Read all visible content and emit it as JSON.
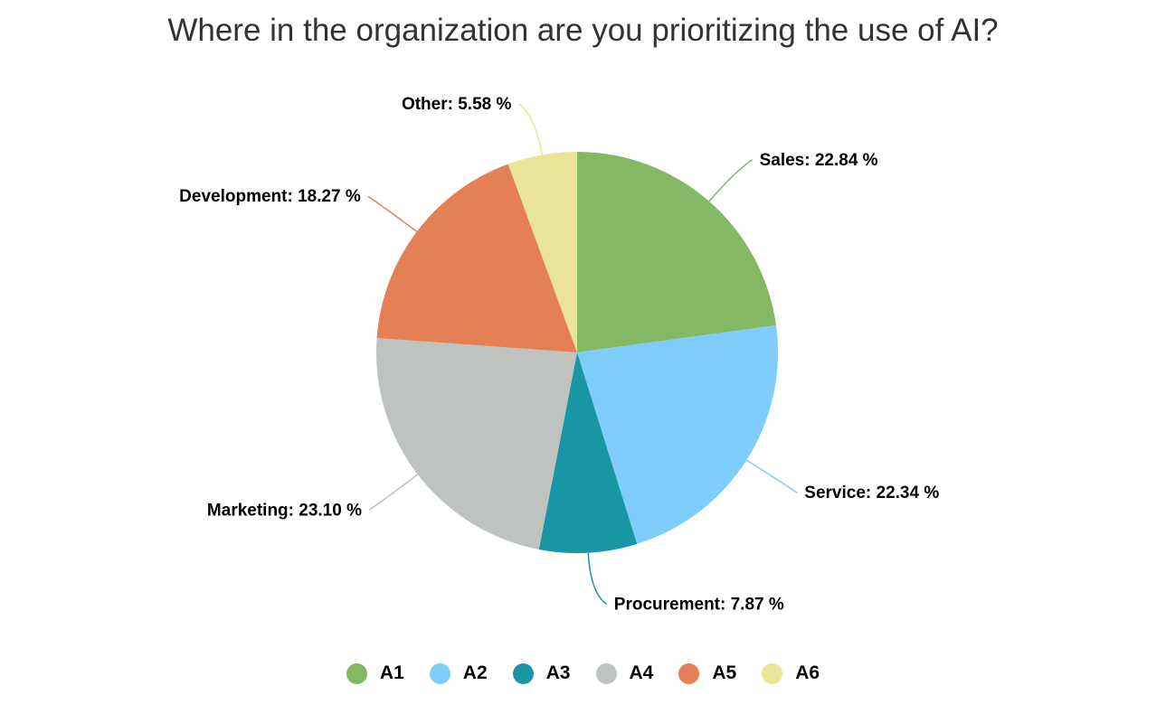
{
  "chart_data": {
    "type": "pie",
    "title": "Where in the organization are you prioritizing the use of AI?",
    "categories": [
      "Sales",
      "Service",
      "Procurement",
      "Marketing",
      "Development",
      "Other"
    ],
    "values": [
      22.84,
      22.34,
      7.87,
      23.1,
      18.27,
      5.58
    ],
    "unit": "%",
    "colors": [
      "#83b965",
      "#7fcdfc",
      "#1896a3",
      "#bec3bf",
      "#e58056",
      "#e9e497"
    ],
    "legend": {
      "position": "bottom",
      "entries": [
        "A1",
        "A2",
        "A3",
        "A4",
        "A5",
        "A6"
      ]
    },
    "labels": [
      "Sales: 22.84 %",
      "Service: 22.34 %",
      "Procurement: 7.87 %",
      "Marketing: 23.10 %",
      "Development: 18.27 %",
      "Other: 5.58 %"
    ]
  },
  "legend_items": [
    {
      "label": "A1",
      "color": "#83b965"
    },
    {
      "label": "A2",
      "color": "#7fcdfc"
    },
    {
      "label": "A3",
      "color": "#1896a3"
    },
    {
      "label": "A4",
      "color": "#bec3bf"
    },
    {
      "label": "A5",
      "color": "#e58056"
    },
    {
      "label": "A6",
      "color": "#e9e497"
    }
  ]
}
